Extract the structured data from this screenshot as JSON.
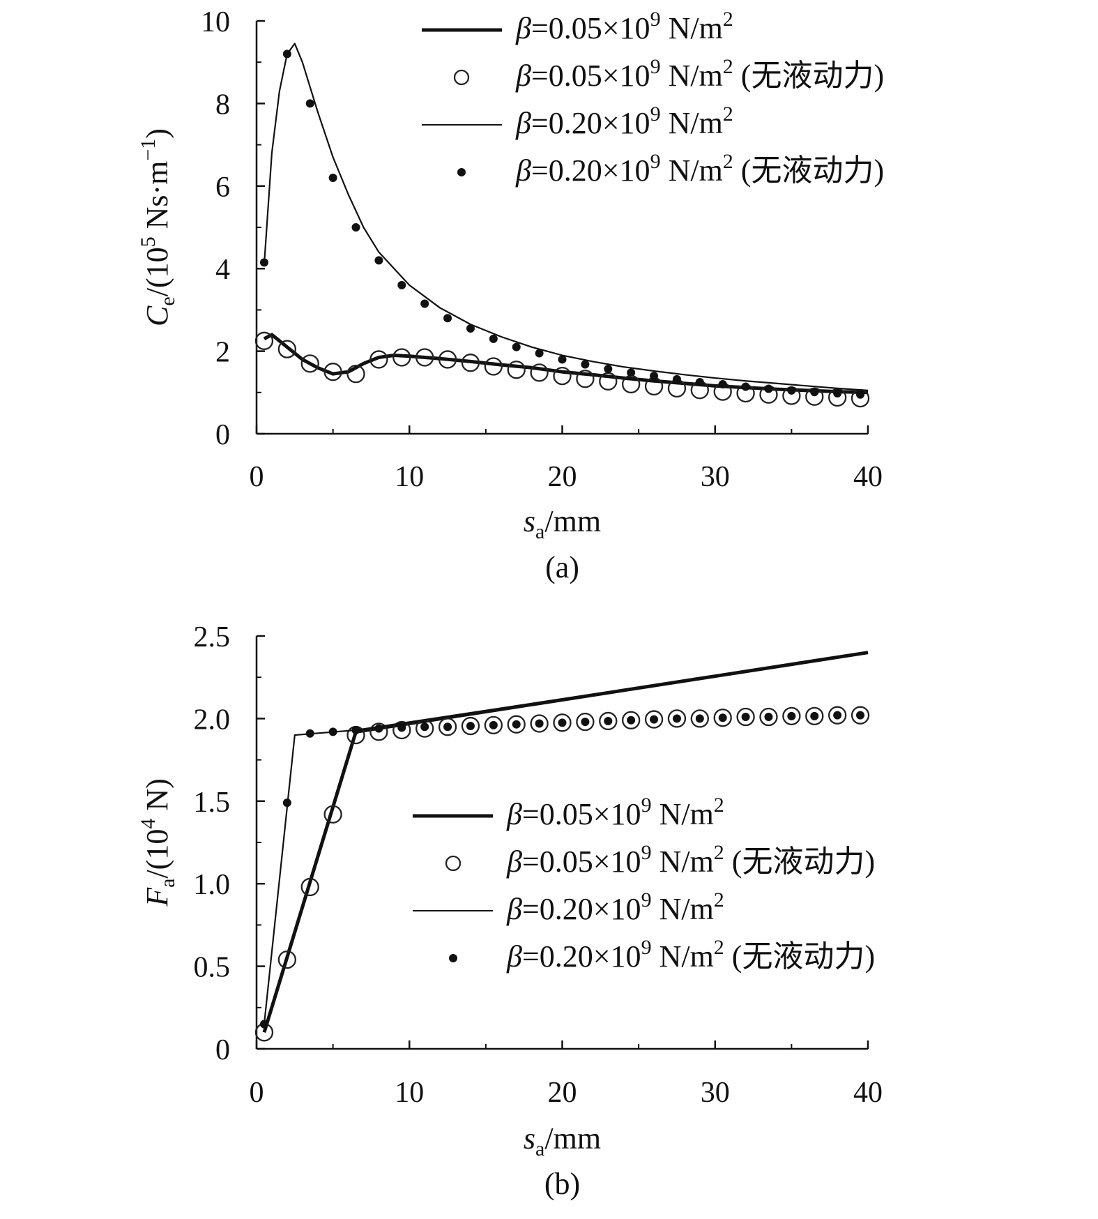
{
  "chart_data": [
    {
      "type": "line",
      "panel_label": "(a)",
      "xlabel": {
        "sym": "s",
        "sub": "a",
        "unit": "/mm"
      },
      "ylabel": {
        "sym": "C",
        "sub": "e",
        "pre": "/(10",
        "sup": "5",
        "post": " Ns·m",
        "sup2": "−1",
        "end": ")"
      },
      "xlim": [
        0,
        40
      ],
      "ylim": [
        0,
        10
      ],
      "xticks": [
        "0",
        "10",
        "20",
        "30",
        "40"
      ],
      "yticks": [
        "0",
        "2",
        "4",
        "6",
        "8",
        "10"
      ],
      "legend_position": "top-right",
      "series": [
        {
          "name": "β=0.05×10⁹ N/m²",
          "legend": {
            "sym": "β",
            "text": "=0.05×10",
            "sup": "9",
            "unit": " N/m",
            "sup2": "2",
            "suffix": ""
          },
          "style": "thick-line",
          "x": [
            0.5,
            1,
            2,
            3,
            4,
            5,
            6,
            7,
            8,
            9,
            10,
            12,
            14,
            16,
            18,
            20,
            22,
            24,
            26,
            28,
            30,
            32,
            34,
            36,
            38,
            40
          ],
          "y": [
            2.3,
            2.4,
            2.1,
            1.8,
            1.6,
            1.45,
            1.5,
            1.7,
            1.85,
            1.9,
            1.88,
            1.82,
            1.75,
            1.67,
            1.6,
            1.5,
            1.43,
            1.35,
            1.28,
            1.22,
            1.16,
            1.12,
            1.08,
            1.05,
            1.02,
            1.0
          ]
        },
        {
          "name": "β=0.05×10⁹ N/m² (无液动力)",
          "legend": {
            "sym": "β",
            "text": "=0.05×10",
            "sup": "9",
            "unit": " N/m",
            "sup2": "2",
            "suffix": " (无液动力)"
          },
          "style": "open-circle",
          "x": [
            0.5,
            2,
            3.5,
            5,
            6.5,
            8,
            9.5,
            11,
            12.5,
            14,
            15.5,
            17,
            18.5,
            20,
            21.5,
            23,
            24.5,
            26,
            27.5,
            29,
            30.5,
            32,
            33.5,
            35,
            36.5,
            38,
            39.5
          ],
          "y": [
            2.25,
            2.05,
            1.7,
            1.5,
            1.45,
            1.8,
            1.85,
            1.85,
            1.8,
            1.72,
            1.63,
            1.55,
            1.48,
            1.4,
            1.33,
            1.27,
            1.2,
            1.15,
            1.1,
            1.06,
            1.02,
            0.98,
            0.95,
            0.92,
            0.9,
            0.88,
            0.86
          ]
        },
        {
          "name": "β=0.20×10⁹ N/m²",
          "legend": {
            "sym": "β",
            "text": "=0.20×10",
            "sup": "9",
            "unit": " N/m",
            "sup2": "2",
            "suffix": ""
          },
          "style": "thin-line",
          "x": [
            0.5,
            1,
            1.5,
            2,
            2.5,
            3,
            4,
            5,
            6,
            7,
            8,
            10,
            12,
            14,
            16,
            18,
            20,
            22,
            24,
            26,
            28,
            30,
            32,
            34,
            36,
            38,
            40
          ],
          "y": [
            4.1,
            6.8,
            8.3,
            9.2,
            9.45,
            9.0,
            7.8,
            6.7,
            5.8,
            5.0,
            4.4,
            3.6,
            3.05,
            2.65,
            2.35,
            2.1,
            1.9,
            1.75,
            1.62,
            1.52,
            1.43,
            1.35,
            1.28,
            1.22,
            1.16,
            1.1,
            1.05
          ]
        },
        {
          "name": "β=0.20×10⁹ N/m² (无液动力)",
          "legend": {
            "sym": "β",
            "text": "=0.20×10",
            "sup": "9",
            "unit": " N/m",
            "sup2": "2",
            "suffix": " (无液动力)"
          },
          "style": "filled-dot",
          "x": [
            0.5,
            2,
            3.5,
            5,
            6.5,
            8,
            9.5,
            11,
            12.5,
            14,
            15.5,
            17,
            18.5,
            20,
            21.5,
            23,
            24.5,
            26,
            27.5,
            29,
            30.5,
            32,
            33.5,
            35,
            36.5,
            38,
            39.5
          ],
          "y": [
            4.15,
            9.2,
            8.0,
            6.2,
            5.0,
            4.2,
            3.6,
            3.15,
            2.8,
            2.55,
            2.3,
            2.1,
            1.95,
            1.8,
            1.68,
            1.57,
            1.48,
            1.4,
            1.32,
            1.25,
            1.2,
            1.14,
            1.09,
            1.05,
            1.01,
            0.98,
            0.95
          ]
        }
      ]
    },
    {
      "type": "line",
      "panel_label": "(b)",
      "xlabel": {
        "sym": "s",
        "sub": "a",
        "unit": "/mm"
      },
      "ylabel": {
        "sym": "F",
        "sub": "a",
        "pre": "/(10",
        "sup": "4",
        "post": " N",
        "sup2": "",
        "end": ")"
      },
      "xlim": [
        0,
        40
      ],
      "ylim": [
        0,
        2.5
      ],
      "xticks": [
        "0",
        "10",
        "20",
        "30",
        "40"
      ],
      "yticks": [
        "0",
        "0.5",
        "1.0",
        "1.5",
        "2.0",
        "2.5"
      ],
      "legend_position": "center-right",
      "series": [
        {
          "name": "β=0.05×10⁹ N/m²",
          "legend": {
            "sym": "β",
            "text": "=0.05×10",
            "sup": "9",
            "unit": " N/m",
            "sup2": "2",
            "suffix": ""
          },
          "style": "thick-line",
          "x": [
            0.5,
            6.5,
            40
          ],
          "y": [
            0.1,
            1.92,
            2.4
          ]
        },
        {
          "name": "β=0.05×10⁹ N/m² (无液动力)",
          "legend": {
            "sym": "β",
            "text": "=0.05×10",
            "sup": "9",
            "unit": " N/m",
            "sup2": "2",
            "suffix": " (无液动力)"
          },
          "style": "open-circle",
          "x": [
            0.5,
            2,
            3.5,
            5,
            6.5,
            8,
            9.5,
            11,
            12.5,
            14,
            15.5,
            17,
            18.5,
            20,
            21.5,
            23,
            24.5,
            26,
            27.5,
            29,
            30.5,
            32,
            33.5,
            35,
            36.5,
            38,
            39.5
          ],
          "y": [
            0.1,
            0.54,
            0.98,
            1.42,
            1.9,
            1.92,
            1.93,
            1.94,
            1.95,
            1.955,
            1.96,
            1.965,
            1.97,
            1.975,
            1.98,
            1.985,
            1.99,
            1.995,
            2.0,
            2.0,
            2.005,
            2.01,
            2.01,
            2.015,
            2.015,
            2.02,
            2.02
          ]
        },
        {
          "name": "β=0.20×10⁹ N/m²",
          "legend": {
            "sym": "β",
            "text": "=0.20×10",
            "sup": "9",
            "unit": " N/m",
            "sup2": "2",
            "suffix": ""
          },
          "style": "thin-line",
          "x": [
            0.5,
            2.5,
            6.5,
            40
          ],
          "y": [
            0.15,
            1.9,
            1.93,
            2.4
          ]
        },
        {
          "name": "β=0.20×10⁹ N/m² (无液动力)",
          "legend": {
            "sym": "β",
            "text": "=0.20×10",
            "sup": "9",
            "unit": " N/m",
            "sup2": "2",
            "suffix": " (无液动力)"
          },
          "style": "filled-dot",
          "x": [
            0.5,
            2,
            3.5,
            5,
            6.5,
            8,
            9.5,
            11,
            12.5,
            14,
            15.5,
            17,
            18.5,
            20,
            21.5,
            23,
            24.5,
            26,
            27.5,
            29,
            30.5,
            32,
            33.5,
            35,
            36.5,
            38,
            39.5
          ],
          "y": [
            0.15,
            1.49,
            1.91,
            1.92,
            1.93,
            1.94,
            1.945,
            1.95,
            1.95,
            1.955,
            1.96,
            1.965,
            1.97,
            1.975,
            1.98,
            1.985,
            1.99,
            1.995,
            2.0,
            2.0,
            2.005,
            2.01,
            2.01,
            2.015,
            2.015,
            2.02,
            2.02
          ]
        }
      ]
    }
  ]
}
